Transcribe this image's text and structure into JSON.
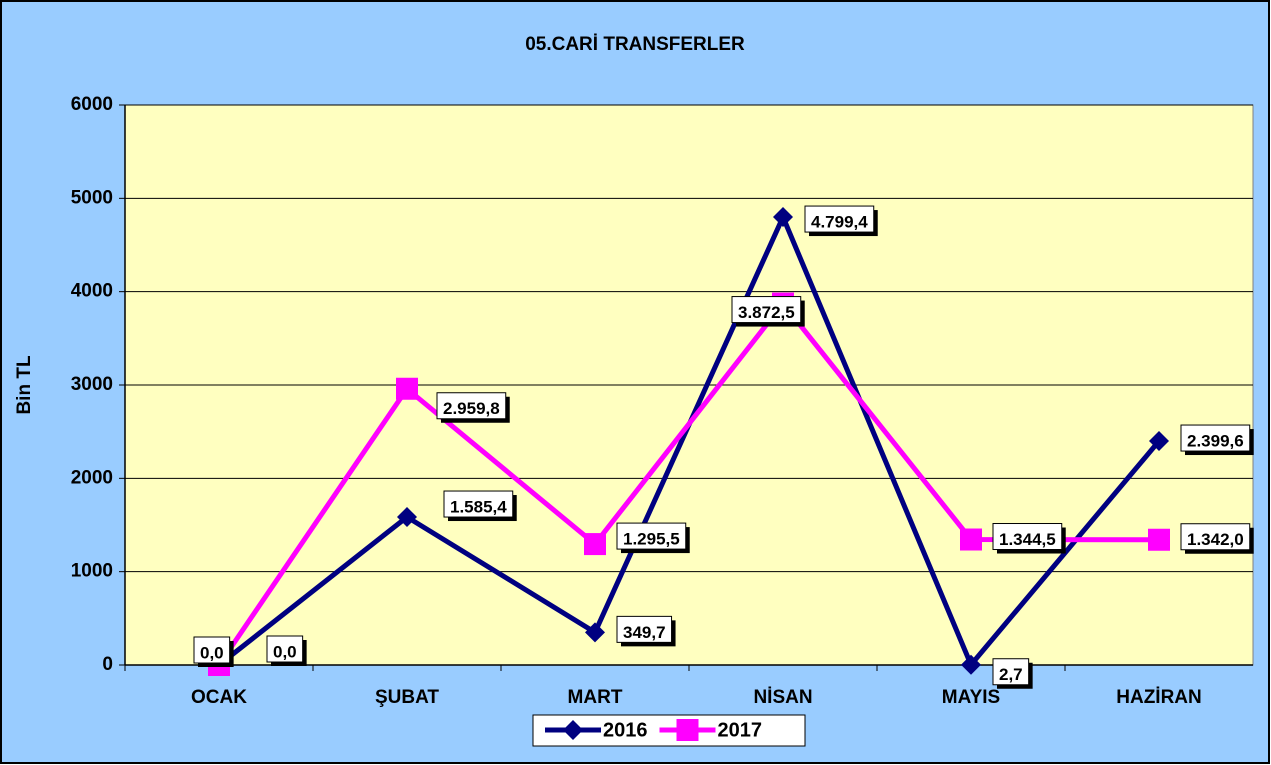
{
  "chart_data": {
    "type": "line",
    "title": "05.CARİ TRANSFERLER",
    "y_label": "Bin TL",
    "categories": [
      "OCAK",
      "ŞUBAT",
      "MART",
      "NİSAN",
      "MAYIS",
      "HAZİRAN"
    ],
    "series": [
      {
        "name": "2016",
        "color": "#000080",
        "marker": "diamond",
        "values": [
          0.0,
          1585.4,
          349.7,
          4799.4,
          2.7,
          2399.6
        ],
        "value_labels": [
          "0,0",
          "1.585,4",
          "349,7",
          "4.799,4",
          "2,7",
          "2.399,6"
        ]
      },
      {
        "name": "2017",
        "color": "#ff00ff",
        "marker": "square",
        "values": [
          0.0,
          2959.8,
          1295.5,
          3872.5,
          1344.5,
          1342.0
        ],
        "value_labels": [
          "0,0",
          "2.959,8",
          "1.295,5",
          "3.872,5",
          "1.344,5",
          "1.342,0"
        ]
      }
    ],
    "ylim": [
      0,
      6000
    ],
    "yticks": [
      0,
      1000,
      2000,
      3000,
      4000,
      5000,
      6000
    ],
    "grid": true,
    "legend": "bottom"
  }
}
